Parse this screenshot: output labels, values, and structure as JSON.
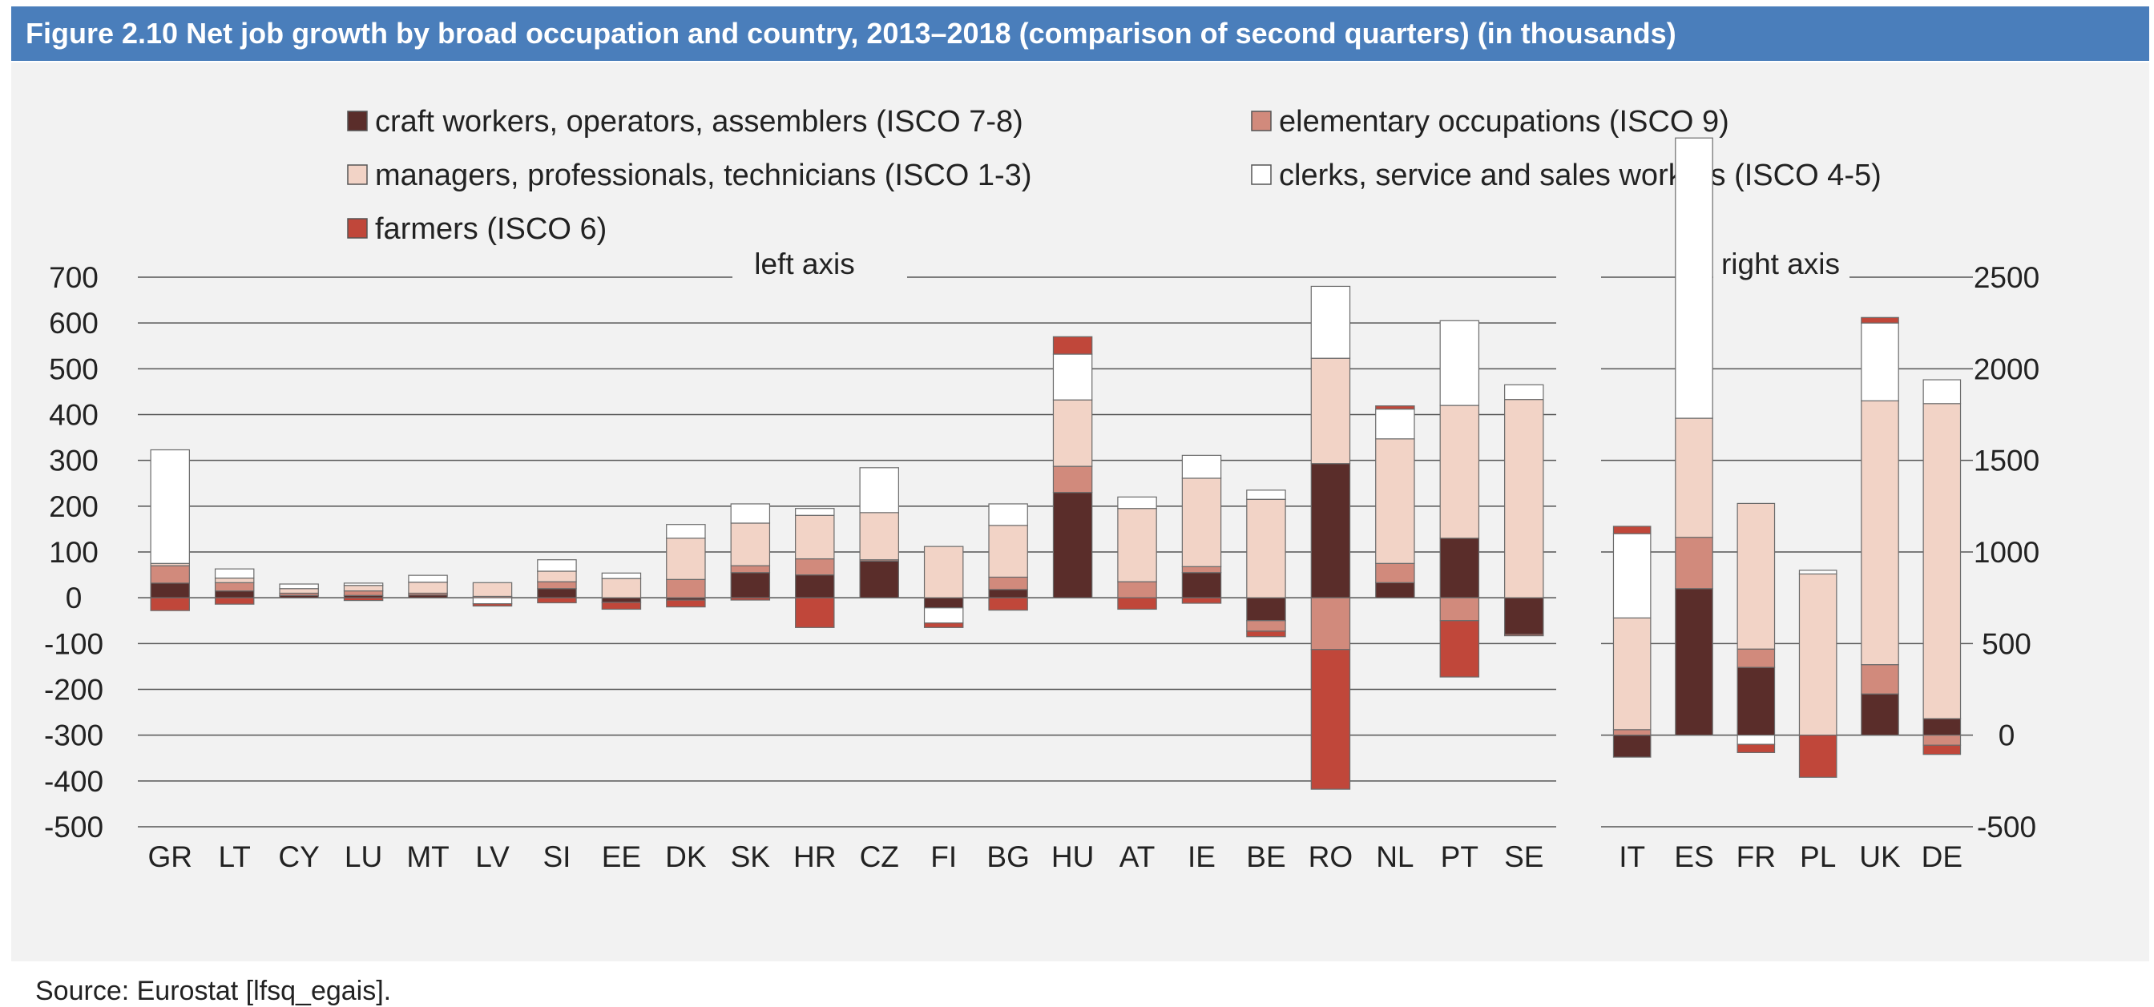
{
  "figure": {
    "title": "Figure 2.10 Net job growth by broad occupation and country, 2013–2018 (comparison of second quarters) (in thousands)",
    "source": "Source: Eurostat [lfsq_egais]."
  },
  "colors": {
    "craft": "#5a2d2a",
    "elementary": "#d18a7c",
    "managers": "#f2d3c6",
    "clerks": "#ffffff",
    "farmers": "#c0473a",
    "title_bar": "#4a7ebb",
    "panel": "#f2f2f2"
  },
  "chart_data": {
    "type": "bar",
    "stacked": true,
    "legend": {
      "placement": "top",
      "entries": [
        {
          "key": "craft",
          "label": "craft workers, operators, assemblers (ISCO 7-8)"
        },
        {
          "key": "elementary",
          "label": "elementary occupations (ISCO 9)"
        },
        {
          "key": "managers",
          "label": "managers, professionals, technicians (ISCO 1-3)"
        },
        {
          "key": "clerks",
          "label": "clerks, service and sales workers (ISCO 4-5)"
        },
        {
          "key": "farmers",
          "label": "farmers (ISCO 6)"
        }
      ]
    },
    "stack_order": [
      "craft",
      "elementary",
      "managers",
      "clerks",
      "farmers"
    ],
    "left_panel": {
      "label": "left axis",
      "ylim": [
        -500,
        700
      ],
      "ticks": [
        "700",
        "600",
        "500",
        "400",
        "300",
        "200",
        "100",
        "0",
        "-100",
        "-200",
        "-300",
        "-400",
        "-500"
      ],
      "categories": [
        "GR",
        "LT",
        "CY",
        "LU",
        "MT",
        "LV",
        "SI",
        "EE",
        "DK",
        "SK",
        "HR",
        "CZ",
        "FI",
        "BG",
        "HU",
        "AT",
        "IE",
        "BE",
        "RO",
        "NL",
        "PT",
        "SE"
      ],
      "series": {
        "craft": [
          32,
          15,
          5,
          5,
          6,
          0,
          20,
          -10,
          -5,
          55,
          50,
          80,
          -22,
          18,
          230,
          0,
          55,
          -50,
          293,
          33,
          130,
          -80
        ],
        "elementary": [
          38,
          18,
          5,
          10,
          4,
          3,
          15,
          0,
          40,
          15,
          35,
          3,
          0,
          27,
          57,
          35,
          13,
          -23,
          -113,
          42,
          -50,
          0
        ],
        "managers": [
          5,
          10,
          10,
          12,
          24,
          30,
          23,
          42,
          90,
          93,
          95,
          103,
          112,
          113,
          145,
          160,
          193,
          215,
          230,
          272,
          290,
          433
        ],
        "clerks": [
          248,
          20,
          10,
          5,
          15,
          -13,
          25,
          12,
          30,
          42,
          15,
          98,
          -33,
          47,
          100,
          25,
          50,
          20,
          157,
          65,
          185,
          32
        ],
        "farmers": [
          -28,
          -14,
          0,
          -6,
          0,
          -5,
          -11,
          -15,
          -15,
          -5,
          -65,
          0,
          -10,
          -27,
          38,
          -25,
          -12,
          -12,
          -305,
          7,
          -123,
          -3
        ]
      }
    },
    "right_panel": {
      "label": "right axis",
      "ylim": [
        -500,
        2500
      ],
      "ticks": [
        "2500",
        "2000",
        "1500",
        "1000",
        "500",
        "0",
        "-500"
      ],
      "categories": [
        "IT",
        "ES",
        "FR",
        "PL",
        "UK",
        "DE"
      ],
      "series": {
        "craft": [
          -120,
          800,
          370,
          0,
          225,
          90
        ],
        "elementary": [
          30,
          280,
          100,
          0,
          160,
          -55
        ],
        "managers": [
          610,
          650,
          795,
          880,
          1440,
          1720
        ],
        "clerks": [
          460,
          1530,
          -50,
          20,
          425,
          130
        ],
        "farmers": [
          40,
          0,
          -45,
          -230,
          30,
          -50
        ]
      }
    }
  }
}
